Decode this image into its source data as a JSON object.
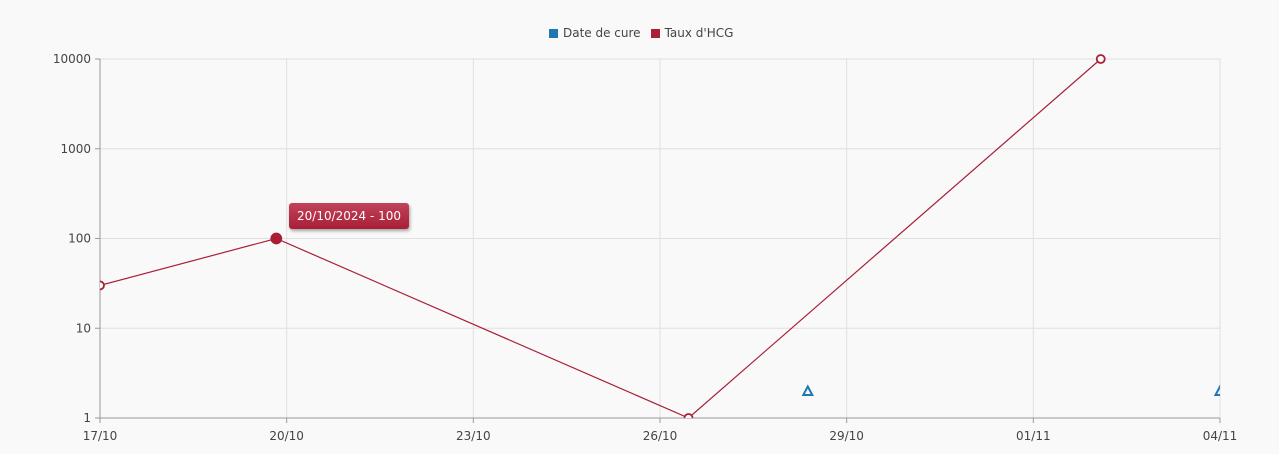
{
  "chart_data": {
    "type": "line",
    "title": "",
    "xlabel": "",
    "ylabel": "",
    "x_type": "date",
    "xlim": [
      "2024-10-17",
      "2024-11-04"
    ],
    "x_ticks": [
      {
        "date": "2024-10-17",
        "label": "17/10"
      },
      {
        "date": "2024-10-20",
        "label": "20/10"
      },
      {
        "date": "2024-10-23",
        "label": "23/10"
      },
      {
        "date": "2024-10-26",
        "label": "26/10"
      },
      {
        "date": "2024-10-29",
        "label": "29/10"
      },
      {
        "date": "2024-11-01",
        "label": "01/11"
      },
      {
        "date": "2024-11-04",
        "label": "04/11"
      }
    ],
    "y_scale": "log",
    "ylim": [
      1,
      10000
    ],
    "y_ticks": [
      "1",
      "10",
      "100",
      "1000",
      "10000"
    ],
    "grid": true,
    "legend_position": "top-center",
    "series": [
      {
        "name": "Date de cure",
        "color": "#1f77b4",
        "marker": "triangle-hollow",
        "line": false,
        "points": [
          {
            "x": "2024-10-28T09:00",
            "y": 2
          },
          {
            "x": "2024-11-04T00:00",
            "y": 2
          }
        ]
      },
      {
        "name": "Taux d'HCG",
        "color": "#a81f36",
        "marker": "circle-hollow",
        "line": true,
        "points": [
          {
            "x": "2024-10-17T00:00",
            "y": 30
          },
          {
            "x": "2024-10-19T20:00",
            "y": 100
          },
          {
            "x": "2024-10-26T11:00",
            "y": 1
          },
          {
            "x": "2024-11-02T02:00",
            "y": 10000
          }
        ]
      }
    ],
    "tooltip": {
      "text": "20/10/2024 - 100",
      "series": "Taux d'HCG",
      "point_index": 1
    }
  }
}
